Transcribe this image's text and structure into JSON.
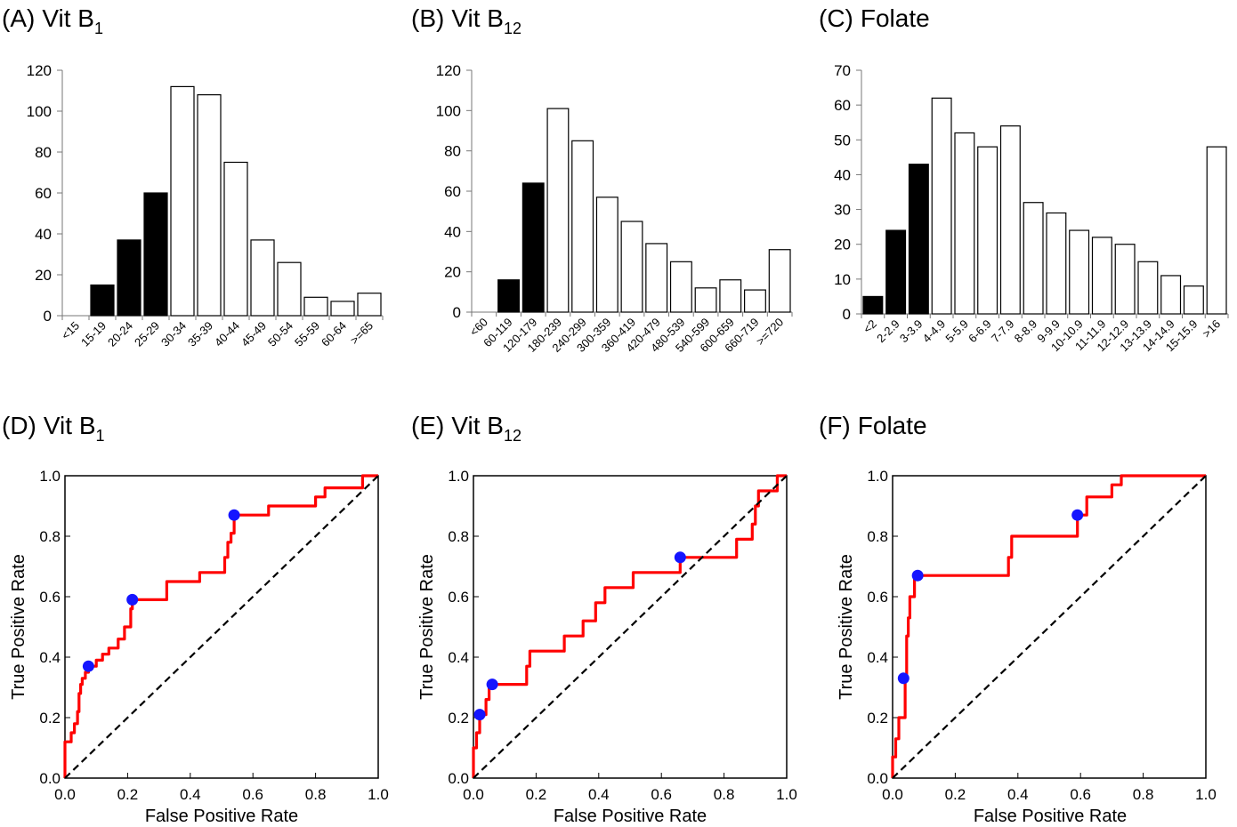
{
  "chart_data": [
    {
      "type": "bar",
      "panel_label": "(A)",
      "title_main": "Vit B",
      "title_sub": "1",
      "categories": [
        "<15",
        "15-19",
        "20-24",
        "25-29",
        "30-34",
        "35-39",
        "40-44",
        "45-49",
        "50-54",
        "55-59",
        "60-64",
        ">=65"
      ],
      "values": [
        0,
        15,
        37,
        60,
        112,
        108,
        75,
        37,
        26,
        9,
        7,
        11
      ],
      "highlighted": [
        false,
        true,
        true,
        true,
        false,
        false,
        false,
        false,
        false,
        false,
        false,
        false
      ],
      "ylim": [
        0,
        120
      ],
      "yticks": [
        0,
        20,
        40,
        60,
        80,
        100,
        120
      ],
      "xlabel": "",
      "ylabel": "",
      "colors": {
        "highlighted": "#000000",
        "other": "#ffffff",
        "outline": "#000000"
      }
    },
    {
      "type": "bar",
      "panel_label": "(B)",
      "title_main": "Vit B",
      "title_sub": "12",
      "categories": [
        "<60",
        "60-119",
        "120-179",
        "180-239",
        "240-299",
        "300-359",
        "360-419",
        "420-479",
        "480-539",
        "540-599",
        "600-659",
        "660-719",
        ">=720"
      ],
      "values": [
        0,
        16,
        64,
        101,
        85,
        57,
        45,
        34,
        25,
        12,
        16,
        11,
        31
      ],
      "highlighted": [
        false,
        true,
        true,
        false,
        false,
        false,
        false,
        false,
        false,
        false,
        false,
        false,
        false
      ],
      "ylim": [
        0,
        120
      ],
      "yticks": [
        0,
        20,
        40,
        60,
        80,
        100,
        120
      ],
      "xlabel": "",
      "ylabel": "",
      "colors": {
        "highlighted": "#000000",
        "other": "#ffffff",
        "outline": "#000000"
      }
    },
    {
      "type": "bar",
      "panel_label": "(C)",
      "title_main": "Folate",
      "title_sub": "",
      "categories": [
        "<2",
        "2-2.9",
        "3-3.9",
        "4-4.9",
        "5-5.9",
        "6-6.9",
        "7-7.9",
        "8-8.9",
        "9-9.9",
        "10-10.9",
        "11-11.9",
        "12-12.9",
        "13-13.9",
        "14-14.9",
        "15-15.9",
        ">16"
      ],
      "values": [
        5,
        24,
        43,
        62,
        52,
        48,
        54,
        32,
        29,
        24,
        22,
        20,
        15,
        11,
        8,
        48
      ],
      "highlighted": [
        true,
        true,
        true,
        false,
        false,
        false,
        false,
        false,
        false,
        false,
        false,
        false,
        false,
        false,
        false,
        false
      ],
      "ylim": [
        0,
        70
      ],
      "yticks": [
        0,
        10,
        20,
        30,
        40,
        50,
        60,
        70
      ],
      "xlabel": "",
      "ylabel": "",
      "colors": {
        "highlighted": "#000000",
        "other": "#ffffff",
        "outline": "#000000"
      }
    },
    {
      "type": "line",
      "panel_label": "(D)",
      "title_main": "Vit B",
      "title_sub": "1",
      "xlabel": "False Positive Rate",
      "ylabel": "True Positive Rate",
      "xlim": [
        0,
        1
      ],
      "ylim": [
        0,
        1
      ],
      "ticks": [
        "0.0",
        "0.2",
        "0.4",
        "0.6",
        "0.8",
        "1.0"
      ],
      "series": [
        {
          "role": "roc",
          "color": "#ff0000",
          "points": [
            [
              0,
              0
            ],
            [
              0,
              0.12
            ],
            [
              0.02,
              0.12
            ],
            [
              0.02,
              0.15
            ],
            [
              0.03,
              0.15
            ],
            [
              0.03,
              0.18
            ],
            [
              0.04,
              0.18
            ],
            [
              0.04,
              0.22
            ],
            [
              0.045,
              0.22
            ],
            [
              0.045,
              0.28
            ],
            [
              0.05,
              0.28
            ],
            [
              0.05,
              0.31
            ],
            [
              0.055,
              0.31
            ],
            [
              0.055,
              0.33
            ],
            [
              0.065,
              0.33
            ],
            [
              0.065,
              0.35
            ],
            [
              0.075,
              0.35
            ],
            [
              0.075,
              0.37
            ],
            [
              0.1,
              0.37
            ],
            [
              0.1,
              0.39
            ],
            [
              0.12,
              0.39
            ],
            [
              0.12,
              0.41
            ],
            [
              0.14,
              0.41
            ],
            [
              0.14,
              0.43
            ],
            [
              0.17,
              0.43
            ],
            [
              0.17,
              0.46
            ],
            [
              0.19,
              0.46
            ],
            [
              0.19,
              0.5
            ],
            [
              0.21,
              0.5
            ],
            [
              0.21,
              0.56
            ],
            [
              0.215,
              0.56
            ],
            [
              0.215,
              0.59
            ],
            [
              0.325,
              0.59
            ],
            [
              0.325,
              0.65
            ],
            [
              0.43,
              0.65
            ],
            [
              0.43,
              0.68
            ],
            [
              0.51,
              0.68
            ],
            [
              0.51,
              0.73
            ],
            [
              0.52,
              0.73
            ],
            [
              0.52,
              0.78
            ],
            [
              0.53,
              0.78
            ],
            [
              0.53,
              0.81
            ],
            [
              0.54,
              0.81
            ],
            [
              0.54,
              0.87
            ],
            [
              0.65,
              0.87
            ],
            [
              0.65,
              0.9
            ],
            [
              0.8,
              0.9
            ],
            [
              0.8,
              0.93
            ],
            [
              0.83,
              0.93
            ],
            [
              0.83,
              0.96
            ],
            [
              0.95,
              0.96
            ],
            [
              0.95,
              1.0
            ],
            [
              1.0,
              1.0
            ]
          ]
        },
        {
          "role": "reference",
          "color": "#000000",
          "dashed": true,
          "points": [
            [
              0,
              0
            ],
            [
              1,
              1
            ]
          ]
        }
      ],
      "markers": {
        "color": "#1515ff",
        "points": [
          [
            0.075,
            0.37
          ],
          [
            0.215,
            0.59
          ],
          [
            0.54,
            0.87
          ]
        ]
      }
    },
    {
      "type": "line",
      "panel_label": "(E)",
      "title_main": "Vit B",
      "title_sub": "12",
      "xlabel": "False Positive Rate",
      "ylabel": "True Positive Rate",
      "xlim": [
        0,
        1
      ],
      "ylim": [
        0,
        1
      ],
      "ticks": [
        "0.0",
        "0.2",
        "0.4",
        "0.6",
        "0.8",
        "1.0"
      ],
      "series": [
        {
          "role": "roc",
          "color": "#ff0000",
          "points": [
            [
              0,
              0
            ],
            [
              0,
              0.1
            ],
            [
              0.01,
              0.1
            ],
            [
              0.01,
              0.15
            ],
            [
              0.02,
              0.15
            ],
            [
              0.02,
              0.21
            ],
            [
              0.04,
              0.21
            ],
            [
              0.04,
              0.26
            ],
            [
              0.05,
              0.26
            ],
            [
              0.05,
              0.31
            ],
            [
              0.17,
              0.31
            ],
            [
              0.17,
              0.37
            ],
            [
              0.18,
              0.37
            ],
            [
              0.18,
              0.42
            ],
            [
              0.29,
              0.42
            ],
            [
              0.29,
              0.47
            ],
            [
              0.35,
              0.47
            ],
            [
              0.35,
              0.52
            ],
            [
              0.39,
              0.52
            ],
            [
              0.39,
              0.58
            ],
            [
              0.42,
              0.58
            ],
            [
              0.42,
              0.63
            ],
            [
              0.51,
              0.63
            ],
            [
              0.51,
              0.68
            ],
            [
              0.66,
              0.68
            ],
            [
              0.66,
              0.73
            ],
            [
              0.84,
              0.73
            ],
            [
              0.84,
              0.79
            ],
            [
              0.89,
              0.79
            ],
            [
              0.89,
              0.84
            ],
            [
              0.9,
              0.84
            ],
            [
              0.9,
              0.9
            ],
            [
              0.91,
              0.9
            ],
            [
              0.91,
              0.95
            ],
            [
              0.97,
              0.95
            ],
            [
              0.97,
              1.0
            ],
            [
              1.0,
              1.0
            ]
          ]
        },
        {
          "role": "reference",
          "color": "#000000",
          "dashed": true,
          "points": [
            [
              0,
              0
            ],
            [
              1,
              1
            ]
          ]
        }
      ],
      "markers": {
        "color": "#1515ff",
        "points": [
          [
            0.02,
            0.21
          ],
          [
            0.06,
            0.31
          ],
          [
            0.66,
            0.73
          ]
        ]
      }
    },
    {
      "type": "line",
      "panel_label": "(F)",
      "title_main": "Folate",
      "title_sub": "",
      "xlabel": "False Positive Rate",
      "ylabel": "True Positive Rate",
      "xlim": [
        0,
        1
      ],
      "ylim": [
        0,
        1
      ],
      "ticks": [
        "0.0",
        "0.2",
        "0.4",
        "0.6",
        "0.8",
        "1.0"
      ],
      "series": [
        {
          "role": "roc",
          "color": "#ff0000",
          "points": [
            [
              0,
              0
            ],
            [
              0,
              0.07
            ],
            [
              0.01,
              0.07
            ],
            [
              0.01,
              0.13
            ],
            [
              0.02,
              0.13
            ],
            [
              0.02,
              0.2
            ],
            [
              0.04,
              0.2
            ],
            [
              0.04,
              0.33
            ],
            [
              0.045,
              0.33
            ],
            [
              0.045,
              0.47
            ],
            [
              0.05,
              0.47
            ],
            [
              0.05,
              0.53
            ],
            [
              0.055,
              0.53
            ],
            [
              0.055,
              0.6
            ],
            [
              0.07,
              0.6
            ],
            [
              0.07,
              0.67
            ],
            [
              0.37,
              0.67
            ],
            [
              0.37,
              0.73
            ],
            [
              0.38,
              0.73
            ],
            [
              0.38,
              0.8
            ],
            [
              0.59,
              0.8
            ],
            [
              0.59,
              0.87
            ],
            [
              0.62,
              0.87
            ],
            [
              0.62,
              0.93
            ],
            [
              0.7,
              0.93
            ],
            [
              0.7,
              0.97
            ],
            [
              0.73,
              0.97
            ],
            [
              0.73,
              1.0
            ],
            [
              1.0,
              1.0
            ]
          ]
        },
        {
          "role": "reference",
          "color": "#000000",
          "dashed": true,
          "points": [
            [
              0,
              0
            ],
            [
              1,
              1
            ]
          ]
        }
      ],
      "markers": {
        "color": "#1515ff",
        "points": [
          [
            0.035,
            0.33
          ],
          [
            0.08,
            0.67
          ],
          [
            0.59,
            0.87
          ]
        ]
      }
    }
  ]
}
